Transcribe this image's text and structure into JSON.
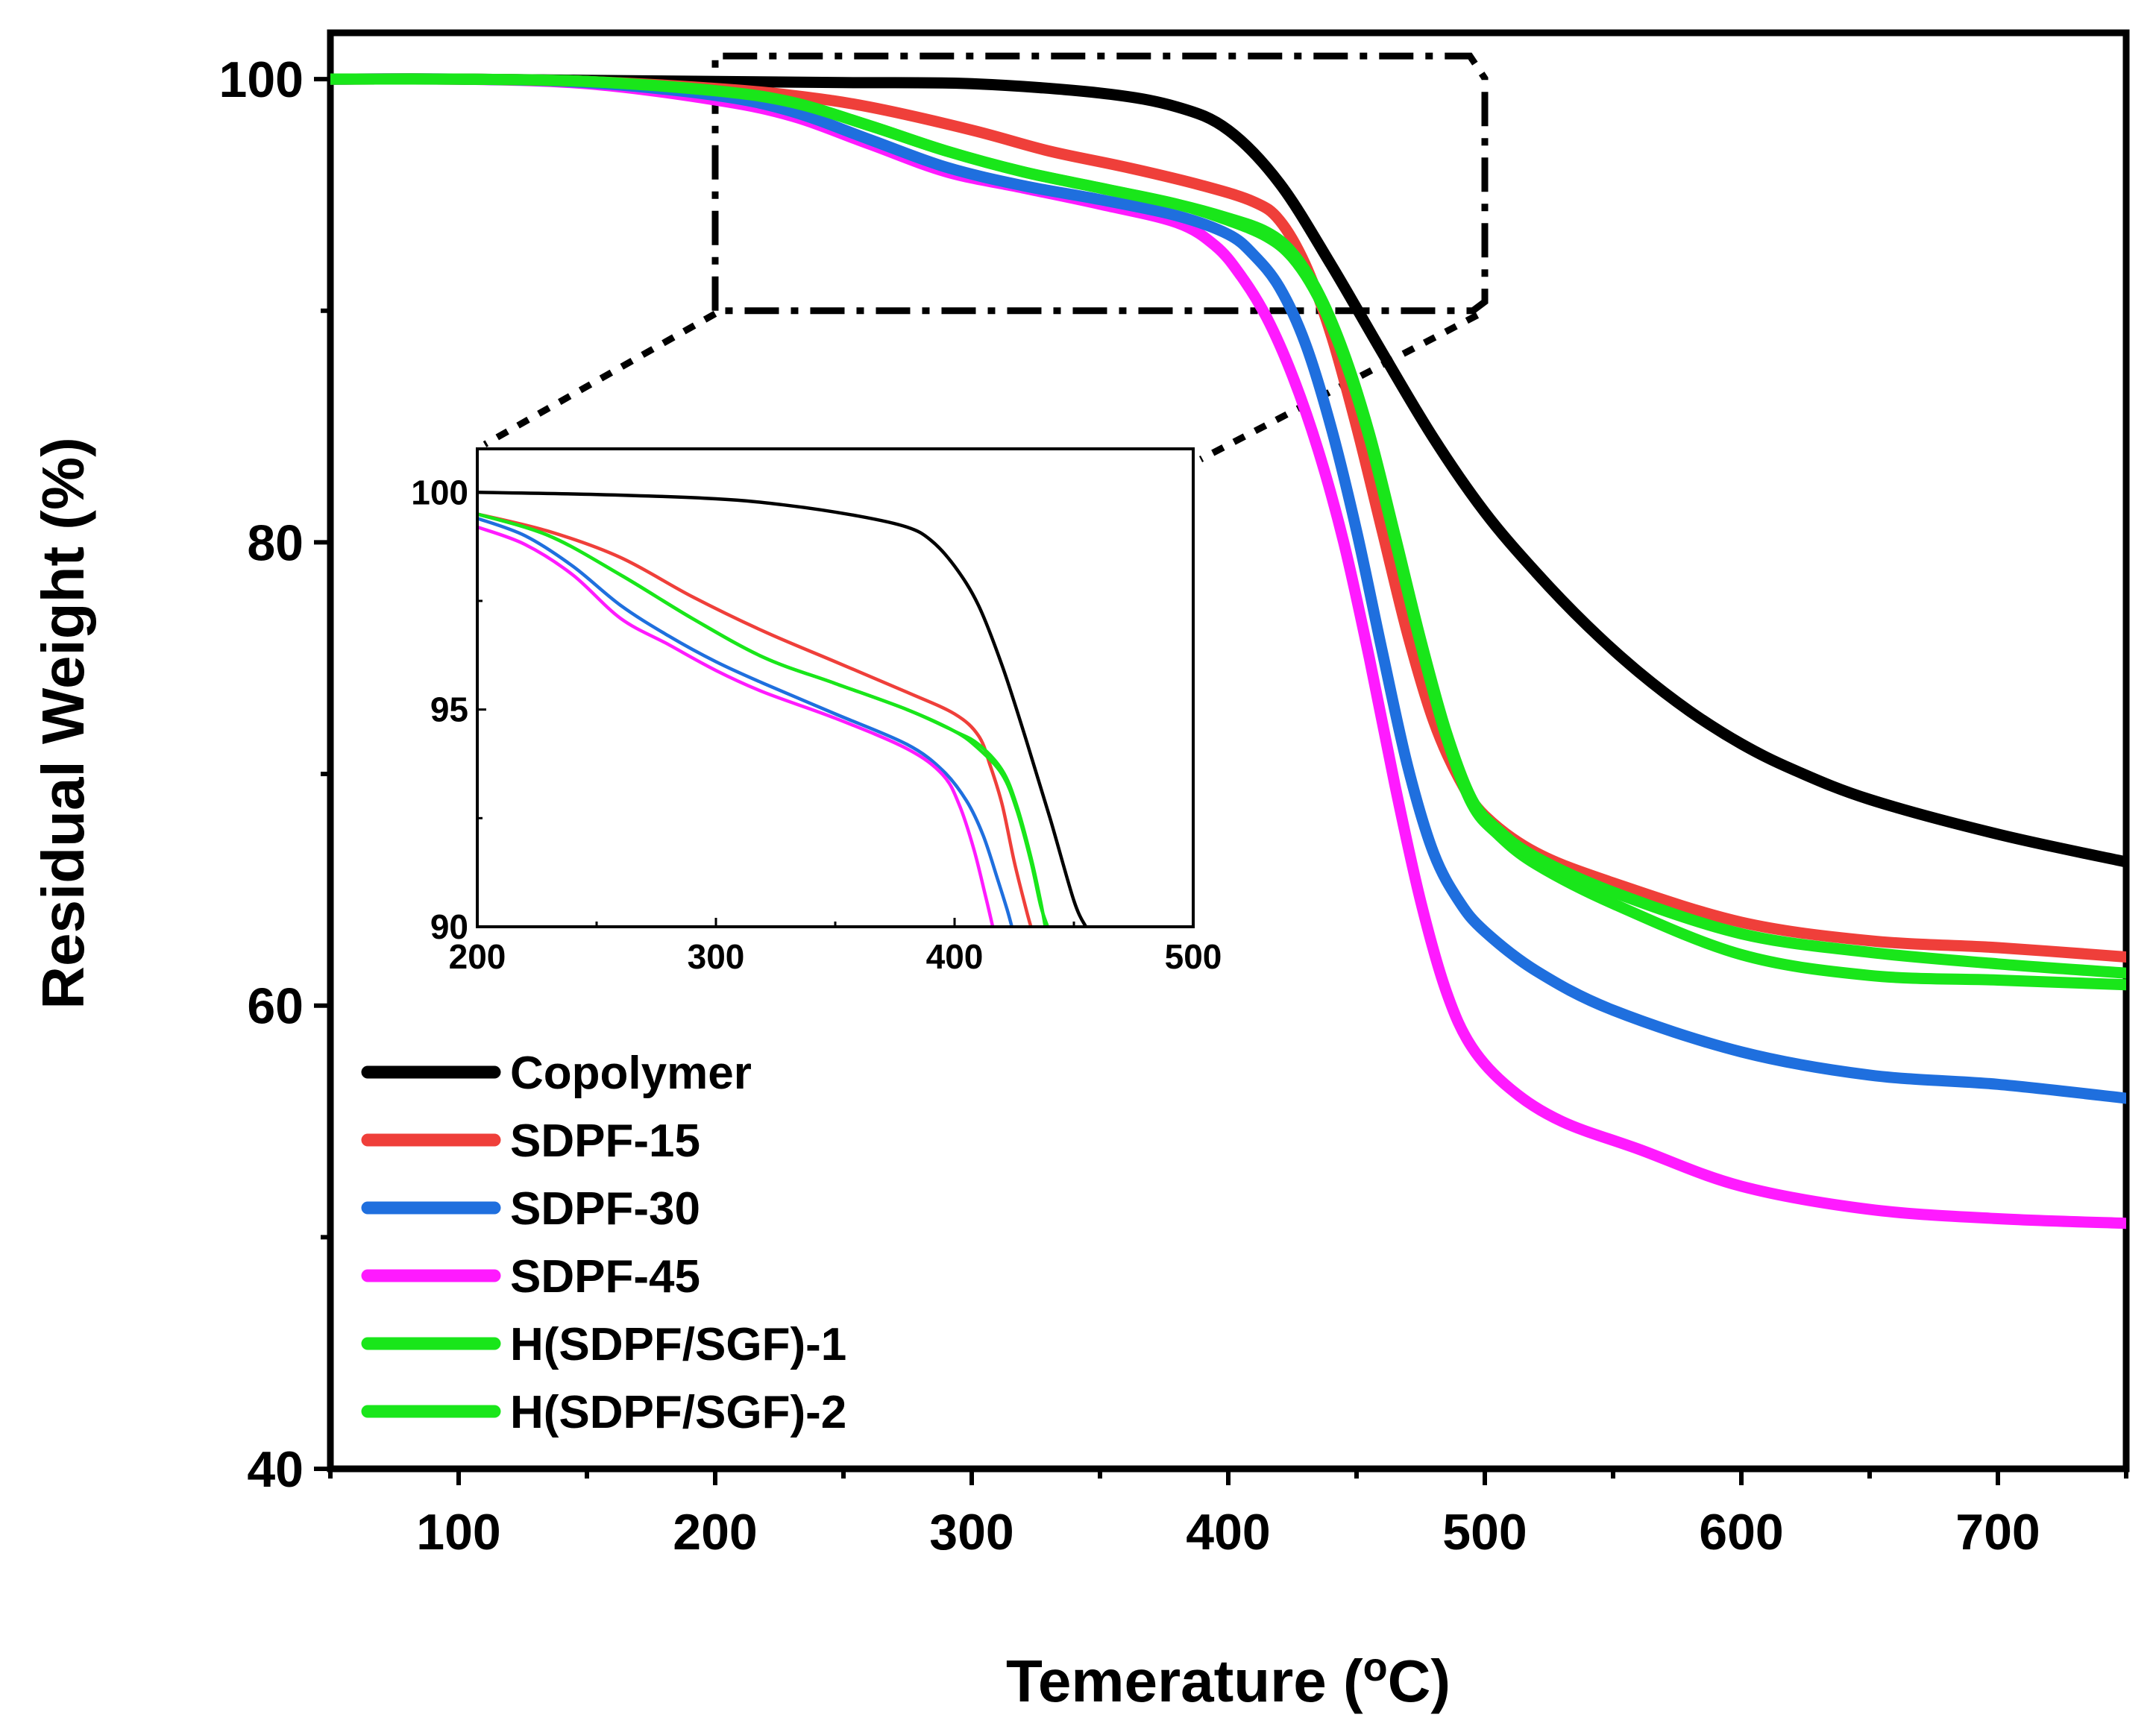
{
  "chart_data": [
    {
      "type": "line",
      "id": "main",
      "xlabel": "Temerature (",
      "xlabel_sup": "o",
      "xlabel_suffix": "C)",
      "ylabel": "Residual Weight (%)",
      "xlim": [
        50,
        750
      ],
      "ylim": [
        40,
        102
      ],
      "xticks": [
        100,
        200,
        300,
        400,
        500,
        600,
        700
      ],
      "yticks": [
        40,
        60,
        80,
        100
      ],
      "xtick_labels": [
        "100",
        "200",
        "300",
        "400",
        "500",
        "600",
        "700"
      ],
      "ytick_labels": [
        "40",
        "60",
        "80",
        "100"
      ],
      "legend_position": "bottom-left",
      "zoom_box": {
        "x": [
          200,
          500
        ],
        "y": [
          90,
          101
        ]
      },
      "series": [
        {
          "name": "Copolymer",
          "color": "#000000",
          "x": [
            50,
            100,
            150,
            200,
            250,
            300,
            350,
            380,
            400,
            420,
            440,
            460,
            480,
            500,
            520,
            540,
            560,
            580,
            600,
            620,
            650,
            700,
            750
          ],
          "y": [
            100,
            100,
            99.95,
            99.9,
            99.85,
            99.8,
            99.4,
            98.8,
            97.8,
            95.5,
            92,
            88.2,
            84.5,
            81.3,
            78.7,
            76.4,
            74.4,
            72.7,
            71.3,
            70.2,
            68.9,
            67.4,
            66.2
          ]
        },
        {
          "name": "SDPF-15",
          "color": "#ef3f3a",
          "x": [
            50,
            100,
            150,
            200,
            230,
            260,
            300,
            330,
            360,
            390,
            410,
            420,
            430,
            440,
            450,
            460,
            470,
            480,
            490,
            500,
            520,
            550,
            600,
            650,
            700,
            750
          ],
          "y": [
            100,
            100,
            99.9,
            99.6,
            99.3,
            98.8,
            97.8,
            96.9,
            96.2,
            95.4,
            94.7,
            93.9,
            92,
            89,
            85,
            80.5,
            76,
            72.3,
            69.8,
            68.2,
            66.6,
            65.3,
            63.6,
            62.8,
            62.5,
            62.1
          ]
        },
        {
          "name": "SDPF-30",
          "color": "#1f6fde",
          "x": [
            50,
            100,
            150,
            200,
            230,
            260,
            290,
            320,
            350,
            380,
            400,
            410,
            420,
            430,
            440,
            450,
            460,
            470,
            480,
            490,
            500,
            520,
            550,
            600,
            650,
            700,
            750
          ],
          "y": [
            100,
            100,
            99.85,
            99.3,
            98.6,
            97.4,
            96.2,
            95.4,
            94.8,
            94.1,
            93.3,
            92.4,
            91,
            88.6,
            85,
            80.5,
            75.3,
            70.3,
            66.6,
            64.5,
            63.2,
            61.5,
            59.8,
            58,
            57,
            56.6,
            56
          ]
        },
        {
          "name": "SDPF-45",
          "color": "#ff1aff",
          "x": [
            50,
            100,
            150,
            200,
            230,
            260,
            290,
            320,
            350,
            380,
            395,
            405,
            415,
            425,
            435,
            445,
            455,
            465,
            475,
            485,
            495,
            510,
            530,
            560,
            600,
            650,
            700,
            750
          ],
          "y": [
            100,
            100,
            99.8,
            99.1,
            98.4,
            97.2,
            96,
            95.3,
            94.6,
            93.8,
            92.8,
            91.5,
            89.7,
            87.2,
            84,
            80,
            75,
            69.5,
            64.5,
            60.6,
            58.2,
            56.4,
            55,
            53.8,
            52.2,
            51.2,
            50.8,
            50.6
          ]
        },
        {
          "name": "H(SDPF/SGF)-1",
          "color": "#19e61a",
          "x": [
            50,
            100,
            150,
            200,
            230,
            260,
            290,
            320,
            350,
            380,
            400,
            415,
            425,
            435,
            445,
            455,
            465,
            475,
            485,
            495,
            505,
            520,
            550,
            600,
            650,
            700,
            750
          ],
          "y": [
            100,
            100,
            99.9,
            99.5,
            99,
            98,
            96.9,
            96,
            95.3,
            94.6,
            94,
            93.4,
            92.5,
            90.8,
            88.2,
            84.7,
            80.3,
            75.8,
            71.8,
            68.9,
            67.6,
            66.4,
            64.9,
            63.1,
            62.3,
            61.8,
            61.4
          ]
        },
        {
          "name": "H(SDPF/SGF)-2",
          "color": "#19e61a",
          "x": [
            50,
            100,
            150,
            200,
            230,
            260,
            290,
            320,
            350,
            380,
            400,
            415,
            425,
            435,
            445,
            455,
            465,
            475,
            485,
            495,
            505,
            520,
            550,
            600,
            650,
            700,
            750
          ],
          "y": [
            100,
            100,
            99.9,
            99.5,
            99,
            98,
            96.9,
            96,
            95.3,
            94.6,
            93.9,
            93.2,
            92.3,
            90.6,
            88,
            84.5,
            80.1,
            75.6,
            71.6,
            68.7,
            67.4,
            66.1,
            64.4,
            62.2,
            61.3,
            61.1,
            60.9
          ]
        }
      ]
    },
    {
      "type": "line",
      "id": "inset",
      "xlim": [
        200,
        500
      ],
      "ylim": [
        90,
        101
      ],
      "xticks": [
        200,
        300,
        400,
        500
      ],
      "yticks": [
        90,
        95,
        100
      ],
      "xtick_labels": [
        "200",
        "300",
        "400",
        "500"
      ],
      "ytick_labels": [
        "90",
        "95",
        "100"
      ],
      "series": [
        {
          "name": "Copolymer",
          "color": "#000000",
          "x": [
            200,
            250,
            300,
            330,
            360,
            380,
            390,
            400,
            410,
            420,
            430,
            440,
            450,
            455
          ],
          "y": [
            100,
            99.95,
            99.85,
            99.7,
            99.45,
            99.2,
            98.9,
            98.3,
            97.4,
            96,
            94.3,
            92.5,
            90.6,
            90
          ]
        },
        {
          "name": "SDPF-15",
          "color": "#ef3f3a",
          "x": [
            200,
            230,
            260,
            290,
            320,
            350,
            380,
            400,
            410,
            415,
            420,
            425,
            430,
            432
          ],
          "y": [
            99.5,
            99.1,
            98.5,
            97.6,
            96.8,
            96.1,
            95.4,
            94.9,
            94.4,
            93.7,
            92.8,
            91.5,
            90.4,
            90
          ]
        },
        {
          "name": "SDPF-30",
          "color": "#1f6fde",
          "x": [
            200,
            220,
            240,
            260,
            280,
            300,
            320,
            350,
            380,
            395,
            405,
            412,
            418,
            422,
            424
          ],
          "y": [
            99.4,
            99,
            98.3,
            97.4,
            96.7,
            96.1,
            95.6,
            94.9,
            94.2,
            93.6,
            92.9,
            92.1,
            91.1,
            90.4,
            90
          ]
        },
        {
          "name": "SDPF-45",
          "color": "#ff1aff",
          "x": [
            200,
            220,
            240,
            260,
            280,
            300,
            320,
            350,
            380,
            395,
            402,
            408,
            413,
            416
          ],
          "y": [
            99.2,
            98.8,
            98.1,
            97.1,
            96.5,
            95.9,
            95.4,
            94.8,
            94.1,
            93.5,
            92.8,
            91.8,
            90.7,
            90
          ]
        },
        {
          "name": "H(SDPF/SGF)-1",
          "color": "#19e61a",
          "x": [
            200,
            230,
            260,
            290,
            320,
            350,
            380,
            400,
            410,
            420,
            426,
            432,
            436,
            438
          ],
          "y": [
            99.5,
            99,
            98.1,
            97.1,
            96.2,
            95.6,
            95,
            94.5,
            94.2,
            93.6,
            92.8,
            91.6,
            90.6,
            90
          ]
        },
        {
          "name": "H(SDPF/SGF)-2",
          "color": "#19e61a",
          "x": [
            200,
            230,
            260,
            290,
            320,
            350,
            380,
            400,
            410,
            420,
            426,
            432,
            436,
            439
          ],
          "y": [
            99.5,
            99,
            98.1,
            97.1,
            96.2,
            95.6,
            95,
            94.5,
            94.1,
            93.5,
            92.7,
            91.5,
            90.5,
            90
          ]
        }
      ]
    }
  ]
}
